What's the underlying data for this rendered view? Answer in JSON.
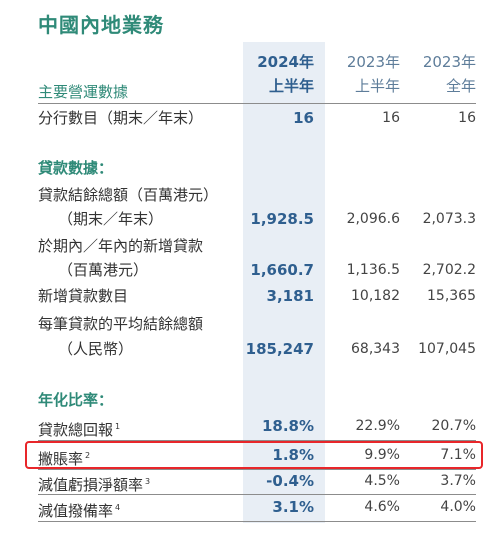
{
  "title": "中國內地業務",
  "header": {
    "row_label": "主要營運數據",
    "col1_line1": "2024年",
    "col1_line2": "上半年",
    "col2_line1": "2023年",
    "col2_line2": "上半年",
    "col3_line1": "2023年",
    "col3_line2": "全年"
  },
  "rows": [
    {
      "label": "分行數目（期末／年末）",
      "v1": "16",
      "v2": "16",
      "v3": "16"
    },
    {
      "label": "貸款數據：",
      "v1": "",
      "v2": "",
      "v3": ""
    },
    {
      "label": "貸款結餘總額（百萬港元）",
      "v1": "",
      "v2": "",
      "v3": ""
    },
    {
      "label": "（期末／年末）",
      "v1": "1,928.5",
      "v2": "2,096.6",
      "v3": "2,073.3"
    },
    {
      "label": "於期內／年內的新增貸款",
      "v1": "",
      "v2": "",
      "v3": ""
    },
    {
      "label": "（百萬港元）",
      "v1": "1,660.7",
      "v2": "1,136.5",
      "v3": "2,702.2"
    },
    {
      "label": "新增貸款數目",
      "v1": "3,181",
      "v2": "10,182",
      "v3": "15,365"
    },
    {
      "label": "每筆貸款的平均結餘總額",
      "v1": "",
      "v2": "",
      "v3": ""
    },
    {
      "label": "（人民幣）",
      "v1": "185,247",
      "v2": "68,343",
      "v3": "107,045"
    },
    {
      "label": "年化比率：",
      "v1": "",
      "v2": "",
      "v3": ""
    },
    {
      "label": "貸款總回報",
      "sup": "1",
      "v1": "18.8%",
      "v2": "22.9%",
      "v3": "20.7%"
    },
    {
      "label": "撇賬率",
      "sup": "2",
      "v1": "1.8%",
      "v2": "9.9%",
      "v3": "7.1%"
    },
    {
      "label": "減值虧損淨額率",
      "sup": "3",
      "v1": "-0.4%",
      "v2": "4.5%",
      "v3": "3.7%"
    },
    {
      "label": "減值撥備率",
      "sup": "4",
      "v1": "3.1%",
      "v2": "4.6%",
      "v3": "4.0%"
    }
  ]
}
